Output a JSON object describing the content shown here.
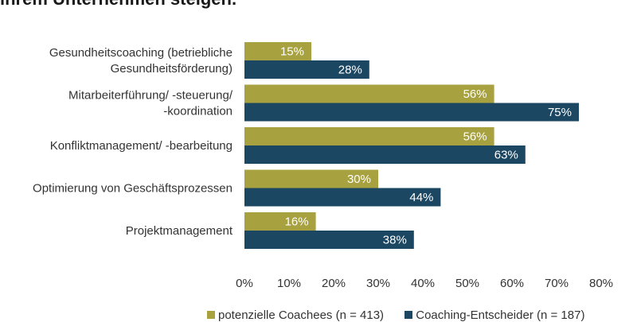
{
  "title": "ihrem Unternehmen steigen.",
  "colors": {
    "series1": "#a7a13f",
    "series2": "#1c4763"
  },
  "chart_data": {
    "type": "bar",
    "orientation": "horizontal",
    "categories": [
      [
        "Gesundheitscoaching (betriebliche",
        "Gesundheitsförderung)"
      ],
      [
        "Mitarbeiterführung/ -steuerung/",
        "-koordination"
      ],
      [
        "Konfliktmanagement/ -bearbeitung"
      ],
      [
        "Optimierung von Geschäftsprozessen"
      ],
      [
        "Projektmanagement"
      ]
    ],
    "series": [
      {
        "name": "potenzielle Coachees (n = 413)",
        "values": [
          15,
          56,
          56,
          30,
          16
        ],
        "labels": [
          "15%",
          "56%",
          "56%",
          "30%",
          "16%"
        ]
      },
      {
        "name": "Coaching-Entscheider (n = 187)",
        "values": [
          28,
          75,
          63,
          44,
          38
        ],
        "labels": [
          "28%",
          "75%",
          "63%",
          "44%",
          "38%"
        ]
      }
    ],
    "xlim": [
      0,
      80
    ],
    "xticks": [
      "0%",
      "10%",
      "20%",
      "30%",
      "40%",
      "50%",
      "60%",
      "70%",
      "80%"
    ],
    "grid": false,
    "legend_position": "bottom"
  }
}
